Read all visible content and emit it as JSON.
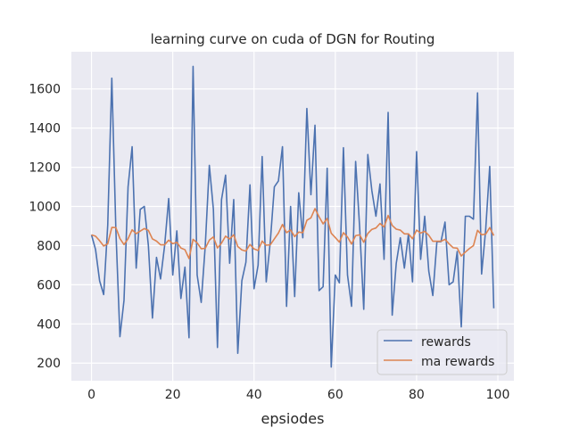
{
  "colors": {
    "axes_bg": "#EAEAF2",
    "grid": "#FFFFFF",
    "rewards": "#4C72B0",
    "ma_rewards": "#DD8452",
    "text": "#262626"
  },
  "chart_data": {
    "type": "line",
    "title": "learning curve on cuda of DGN for Routing",
    "xlabel": "epsiodes",
    "ylabel": "",
    "xlim": [
      -4.95,
      103.95
    ],
    "ylim": [
      110,
      1790
    ],
    "xticks": [
      0,
      20,
      40,
      60,
      80,
      100
    ],
    "yticks": [
      200,
      400,
      600,
      800,
      1000,
      1200,
      1400,
      1600
    ],
    "grid": true,
    "legend_position": "lower-right",
    "series": [
      {
        "name": "rewards",
        "x": [
          0,
          1,
          2,
          3,
          4,
          5,
          6,
          7,
          8,
          9,
          10,
          11,
          12,
          13,
          14,
          15,
          16,
          17,
          18,
          19,
          20,
          21,
          22,
          23,
          24,
          25,
          26,
          27,
          28,
          29,
          30,
          31,
          32,
          33,
          34,
          35,
          36,
          37,
          38,
          39,
          40,
          41,
          42,
          43,
          44,
          45,
          46,
          47,
          48,
          49,
          50,
          51,
          52,
          53,
          54,
          55,
          56,
          57,
          58,
          59,
          60,
          61,
          62,
          63,
          64,
          65,
          66,
          67,
          68,
          69,
          70,
          71,
          72,
          73,
          74,
          75,
          76,
          77,
          78,
          79,
          80,
          81,
          82,
          83,
          84,
          85,
          86,
          87,
          88,
          89,
          90,
          91,
          92,
          93,
          94,
          95,
          96,
          97,
          98,
          99
        ],
        "values": [
          855,
          780,
          620,
          550,
          905,
          1655,
          880,
          335,
          520,
          1100,
          1305,
          685,
          985,
          1000,
          800,
          430,
          740,
          630,
          800,
          1040,
          650,
          875,
          530,
          690,
          330,
          1715,
          650,
          510,
          800,
          1210,
          985,
          280,
          1035,
          1160,
          710,
          1035,
          250,
          620,
          715,
          1110,
          580,
          700,
          1255,
          615,
          820,
          1100,
          1130,
          1305,
          490,
          1000,
          540,
          1070,
          840,
          1500,
          1060,
          1415,
          570,
          590,
          1195,
          180,
          650,
          610,
          1300,
          650,
          490,
          1230,
          890,
          475,
          1265,
          1080,
          950,
          1115,
          730,
          1480,
          445,
          710,
          840,
          685,
          860,
          615,
          1280,
          730,
          950,
          670,
          545,
          820,
          820,
          920,
          600,
          615,
          770,
          385,
          950,
          950,
          935,
          1580,
          655,
          880,
          1205,
          480
        ]
      },
      {
        "name": "ma rewards",
        "x": [
          0,
          1,
          2,
          3,
          4,
          5,
          6,
          7,
          8,
          9,
          10,
          11,
          12,
          13,
          14,
          15,
          16,
          17,
          18,
          19,
          20,
          21,
          22,
          23,
          24,
          25,
          26,
          27,
          28,
          29,
          30,
          31,
          32,
          33,
          34,
          35,
          36,
          37,
          38,
          39,
          40,
          41,
          42,
          43,
          44,
          45,
          46,
          47,
          48,
          49,
          50,
          51,
          52,
          53,
          54,
          55,
          56,
          57,
          58,
          59,
          60,
          61,
          62,
          63,
          64,
          65,
          66,
          67,
          68,
          69,
          70,
          71,
          72,
          73,
          74,
          75,
          76,
          77,
          78,
          79,
          80,
          81,
          82,
          83,
          84,
          85,
          86,
          87,
          88,
          89,
          90,
          91,
          92,
          93,
          94,
          95,
          96,
          97,
          98,
          99
        ],
        "values": [
          855,
          848,
          825,
          798,
          809,
          893,
          892,
          836,
          805,
          835,
          881,
          861,
          874,
          887,
          878,
          834,
          823,
          804,
          804,
          828,
          810,
          817,
          788,
          779,
          734,
          832,
          814,
          784,
          786,
          828,
          844,
          788,
          813,
          848,
          834,
          855,
          795,
          778,
          772,
          806,
          783,
          775,
          823,
          802,
          804,
          834,
          864,
          908,
          866,
          880,
          846,
          869,
          866,
          929,
          942,
          989,
          947,
          911,
          939,
          863,
          841,
          818,
          866,
          844,
          808,
          851,
          855,
          817,
          862,
          883,
          890,
          913,
          895,
          954,
          903,
          884,
          879,
          860,
          860,
          835,
          879,
          864,
          873,
          853,
          822,
          822,
          822,
          832,
          809,
          789,
          787,
          747,
          767,
          785,
          800,
          878,
          856,
          858,
          892,
          851
        ]
      }
    ]
  }
}
